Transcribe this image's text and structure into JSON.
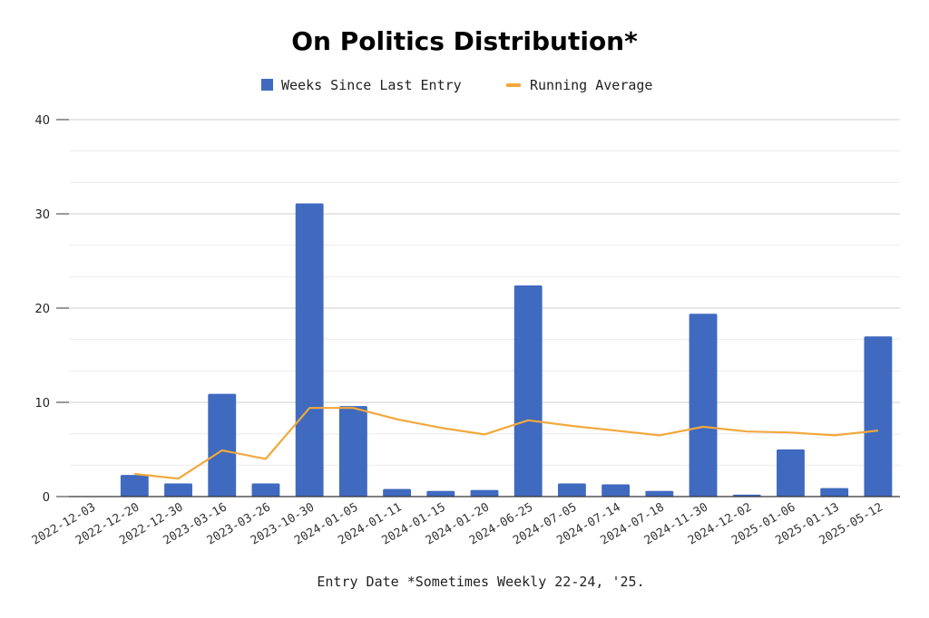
{
  "chart_data": {
    "type": "bar",
    "title": "On Politics Distribution*",
    "xlabel": "Entry Date  *Sometimes Weekly 22-24, '25.",
    "ylabel": "",
    "ylim": [
      0,
      40
    ],
    "yticks": [
      0,
      10,
      20,
      30,
      40
    ],
    "grid": true,
    "legend_position": "top",
    "categories": [
      "2022-12-03",
      "2022-12-20",
      "2022-12-30",
      "2023-03-16",
      "2023-03-26",
      "2023-10-30",
      "2024-01-05",
      "2024-01-11",
      "2024-01-15",
      "2024-01-20",
      "2024-06-25",
      "2024-07-05",
      "2024-07-14",
      "2024-07-18",
      "2024-11-30",
      "2024-12-02",
      "2025-01-06",
      "2025-01-13",
      "2025-05-12"
    ],
    "series": [
      {
        "name": "Weeks Since Last Entry",
        "type": "bar",
        "color": "#3f6abf",
        "values": [
          0,
          2.3,
          1.4,
          10.9,
          1.4,
          31.1,
          9.6,
          0.8,
          0.6,
          0.7,
          22.4,
          1.4,
          1.3,
          0.6,
          19.4,
          0.2,
          5.0,
          0.9,
          17.0
        ]
      },
      {
        "name": "Running Average",
        "type": "line",
        "color": "#f2a83b",
        "values": [
          null,
          2.4,
          1.9,
          4.9,
          4.0,
          9.4,
          9.4,
          8.2,
          7.3,
          6.6,
          8.1,
          7.5,
          7.0,
          6.5,
          7.4,
          6.9,
          6.8,
          6.5,
          7.0
        ]
      }
    ]
  }
}
